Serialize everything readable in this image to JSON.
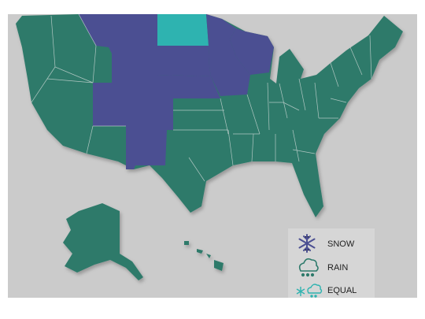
{
  "legend": [
    {
      "label": "SNOW",
      "color": "#4b4f92"
    },
    {
      "label": "RAIN",
      "color": "#2e7a6b"
    },
    {
      "label": "EQUAL",
      "color": "#2fb3b0"
    }
  ]
}
